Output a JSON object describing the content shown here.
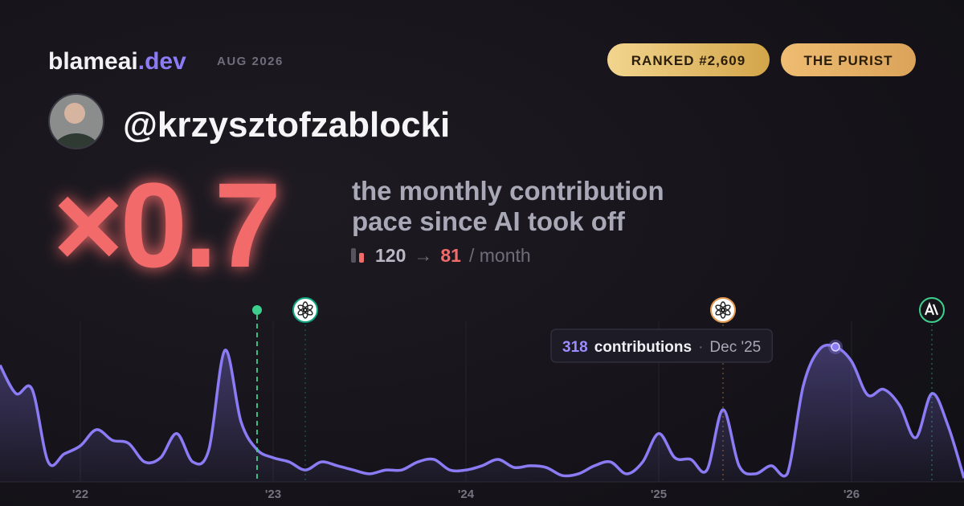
{
  "header": {
    "brand": "blameai",
    "tld": ".dev",
    "date": "AUG 2026",
    "badges": [
      "RANKED #2,609",
      "THE PURIST"
    ]
  },
  "profile": {
    "handle": "@krzysztofzablocki"
  },
  "stat": {
    "multiplier": "×0.7",
    "description": [
      "the monthly contribution",
      "pace since AI took off"
    ],
    "pace_from": 120,
    "arrow": "→",
    "pace_to": 81,
    "pace_unit": "/ month"
  },
  "chart_data": {
    "type": "line",
    "x": [
      "2021-08",
      "2021-09",
      "2021-10",
      "2021-11",
      "2021-12",
      "2022-01",
      "2022-02",
      "2022-03",
      "2022-04",
      "2022-05",
      "2022-06",
      "2022-07",
      "2022-08",
      "2022-09",
      "2022-10",
      "2022-11",
      "2022-12",
      "2023-01",
      "2023-02",
      "2023-03",
      "2023-04",
      "2023-05",
      "2023-06",
      "2023-07",
      "2023-08",
      "2023-09",
      "2023-10",
      "2023-11",
      "2023-12",
      "2024-01",
      "2024-02",
      "2024-03",
      "2024-04",
      "2024-05",
      "2024-06",
      "2024-07",
      "2024-08",
      "2024-09",
      "2024-10",
      "2024-11",
      "2024-12",
      "2025-01",
      "2025-02",
      "2025-03",
      "2025-04",
      "2025-05",
      "2025-06",
      "2025-07",
      "2025-08",
      "2025-09",
      "2025-10",
      "2025-11",
      "2025-12",
      "2026-01",
      "2026-02",
      "2026-03",
      "2026-04",
      "2026-05",
      "2026-06",
      "2026-07",
      "2026-08"
    ],
    "series": [
      {
        "name": "contributions",
        "color": "#8b7cf6",
        "values": [
          275,
          208,
          218,
          47,
          66,
          85,
          123,
          98,
          91,
          47,
          57,
          114,
          47,
          76,
          310,
          142,
          76,
          57,
          47,
          28,
          47,
          38,
          28,
          19,
          28,
          28,
          47,
          53,
          28,
          28,
          38,
          53,
          34,
          38,
          34,
          15,
          19,
          38,
          47,
          19,
          47,
          114,
          57,
          53,
          28,
          170,
          38,
          19,
          38,
          19,
          227,
          312,
          318,
          284,
          205,
          218,
          180,
          104,
          208,
          133,
          9
        ]
      }
    ],
    "xlim": [
      "2021-08",
      "2026-08"
    ],
    "xticks": [
      {
        "value": "2022-01",
        "label": "'22"
      },
      {
        "value": "2023-01",
        "label": "'23"
      },
      {
        "value": "2024-01",
        "label": "'24"
      },
      {
        "value": "2025-01",
        "label": "'25"
      },
      {
        "value": "2026-01",
        "label": "'26"
      }
    ],
    "ylim": [
      0,
      350
    ],
    "grid": true,
    "events": [
      {
        "x": "2022-12",
        "color": "#3ecf8e"
      },
      {
        "x": "2023-03",
        "color": "#10a37f"
      },
      {
        "x": "2025-05",
        "color": "#e39a4f"
      },
      {
        "x": "2026-06",
        "color": "#3ecf8e"
      }
    ],
    "tooltip": {
      "x": "2025-12",
      "value": 318,
      "label": "contributions",
      "separator": "·",
      "x_label": "Dec '25"
    }
  }
}
